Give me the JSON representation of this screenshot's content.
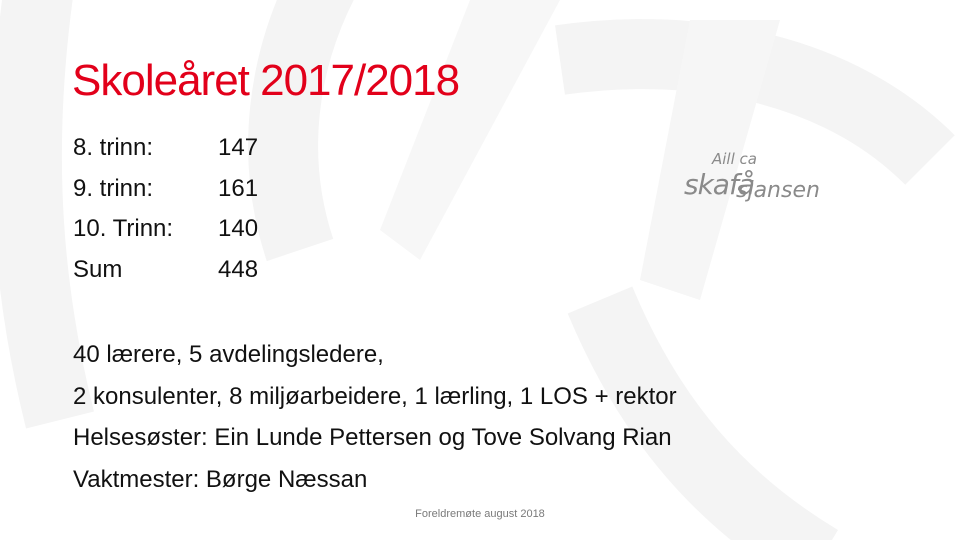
{
  "slide": {
    "title": "Skoleåret 2017/2018",
    "enrollment": [
      {
        "label": "8. trinn:",
        "value": "147"
      },
      {
        "label": "9. trinn:",
        "value": "161"
      },
      {
        "label": "10. Trinn:",
        "value": "140"
      },
      {
        "label": "Sum",
        "value": "448"
      }
    ],
    "staff_lines": [
      "40 lærere, 5 avdelingsledere,",
      "2 konsulenter, 8 miljøarbeidere, 1 lærling, 1 LOS  + rektor",
      "Helsesøster: Ein Lunde Pettersen og Tove Solvang Rian",
      "Vaktmester: Børge Næssan"
    ],
    "footer": "Foreldremøte august 2018",
    "logo": {
      "line1": "Aill ca",
      "line2": "skafå",
      "line3": "sjansen"
    },
    "colors": {
      "title": "#e2001a",
      "text": "#111111",
      "logo": "#8a8a8a"
    }
  }
}
